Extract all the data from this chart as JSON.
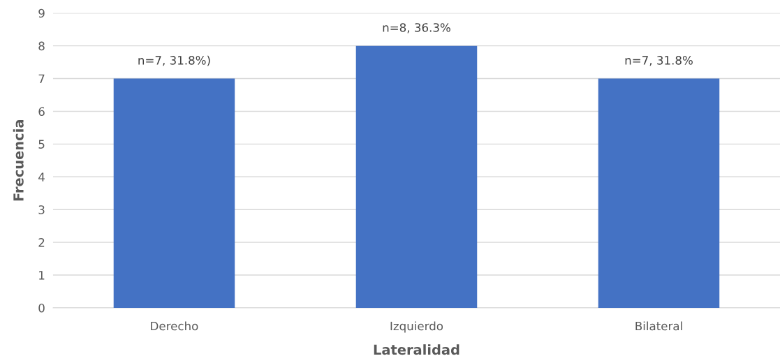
{
  "chart_data": {
    "type": "bar",
    "xlabel": "Lateralidad",
    "ylabel": "Frecuencia",
    "categories": [
      "Derecho",
      "Izquierdo",
      "Bilateral"
    ],
    "values": [
      7,
      8,
      7
    ],
    "value_labels": [
      "n=7, 31.8%)",
      "n=8, 36.3%",
      "n=7, 31.8%"
    ],
    "color": "#4472c4",
    "ylim": [
      0,
      9
    ],
    "yticks": [
      0,
      1,
      2,
      3,
      4,
      5,
      6,
      7,
      8,
      9
    ],
    "grid": "y"
  }
}
